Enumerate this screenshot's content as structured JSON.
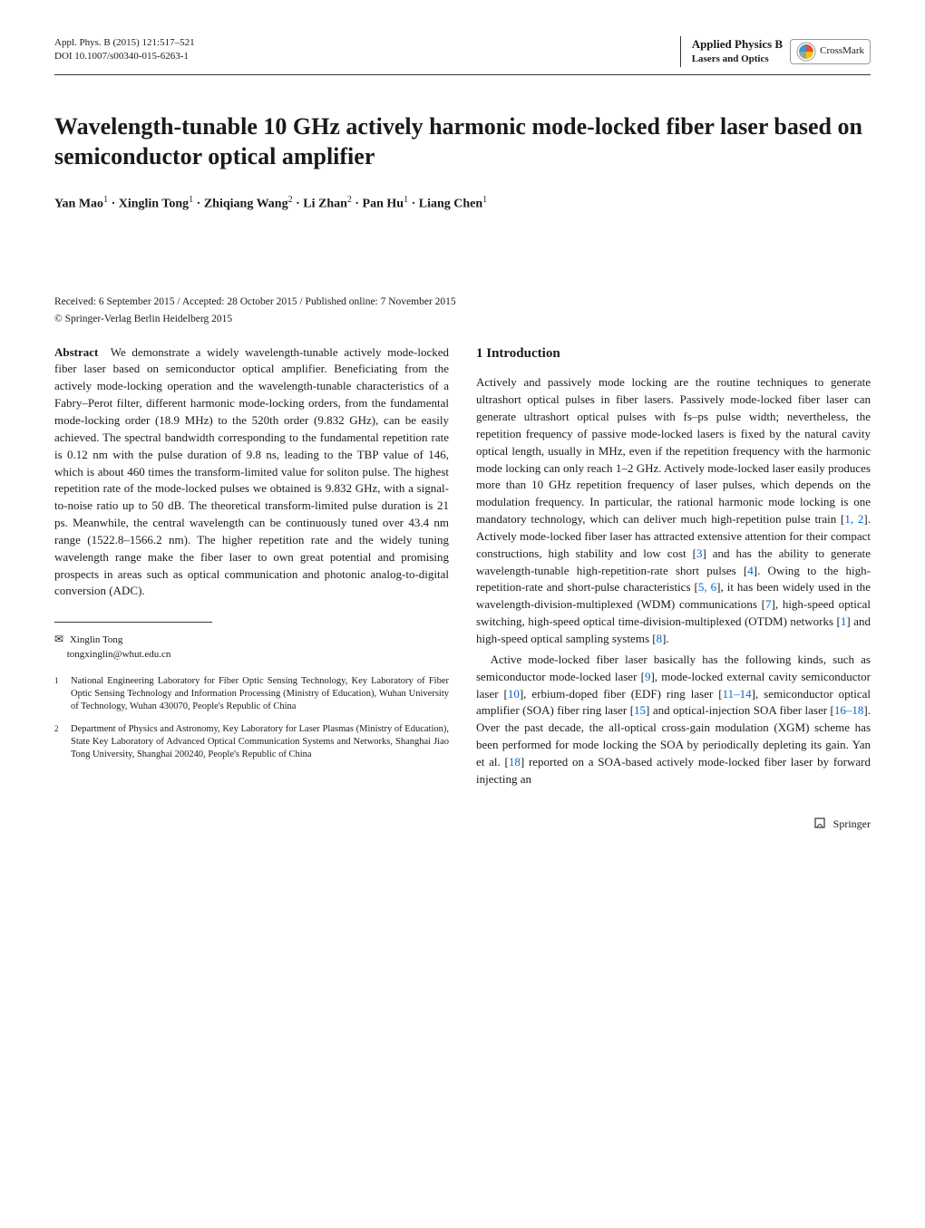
{
  "header": {
    "citation": "Appl. Phys. B (2015) 121:517–521",
    "doi": "DOI 10.1007/s00340-015-6263-1",
    "journal_name": "Applied Physics B",
    "journal_subtitle": "Lasers and Optics",
    "crossmark_label": "CrossMark",
    "crossmark_colors": {
      "red": "#e74c3c",
      "yellow": "#f1c40f",
      "blue": "#3498db",
      "green": "#95a5a6"
    }
  },
  "title": "Wavelength-tunable 10 GHz actively harmonic mode-locked fiber laser based on semiconductor optical amplifier",
  "authors_html": "Yan Mao<sup>1</sup> · Xinglin Tong<sup>1</sup> · Zhiqiang Wang<sup>2</sup> · Li Zhan<sup>2</sup> · Pan Hu<sup>1</sup> · Liang Chen<sup>1</sup>",
  "dates": "Received: 6 September 2015 / Accepted: 28 October 2015 / Published online: 7 November 2015",
  "copyright": "© Springer-Verlag Berlin Heidelberg 2015",
  "abstract": {
    "label": "Abstract",
    "text": "We demonstrate a widely wavelength-tunable actively mode-locked fiber laser based on semiconductor optical amplifier. Beneficiating from the actively mode-locking operation and the wavelength-tunable characteristics of a Fabry–Perot filter, different harmonic mode-locking orders, from the fundamental mode-locking order (18.9 MHz) to the 520th order (9.832 GHz), can be easily achieved. The spectral bandwidth corresponding to the fundamental repetition rate is 0.12 nm with the pulse duration of 9.8 ns, leading to the TBP value of 146, which is about 460 times the transform-limited value for soliton pulse. The highest repetition rate of the mode-locked pulses we obtained is 9.832 GHz, with a signal-to-noise ratio up to 50 dB. The theoretical transform-limited pulse duration is 21 ps. Meanwhile, the central wavelength can be continuously tuned over 43.4 nm range (1522.8–1566.2 nm). The higher repetition rate and the widely tuning wavelength range make the fiber laser to own great potential and promising prospects in areas such as optical communication and photonic analog-to-digital conversion (ADC)."
  },
  "section1": {
    "heading": "1 Introduction",
    "para1": "Actively and passively mode locking are the routine techniques to generate ultrashort optical pulses in fiber lasers. Passively mode-locked fiber laser can generate ultrashort optical pulses with fs–ps pulse width; nevertheless, the repetition frequency of passive mode-locked lasers is fixed by the natural cavity optical length, usually in MHz, even if the repetition frequency with the harmonic mode locking can only reach 1–2 GHz. Actively mode-locked laser easily produces more than 10 GHz repetition frequency of laser pulses, which depends on the modulation frequency. In particular, the rational harmonic mode locking is one mandatory technology, which can deliver much high-repetition pulse train [",
    "para1_refs1": "1, 2",
    "para1_cont1": "]. Actively mode-locked fiber laser has attracted extensive attention for their compact constructions, high stability and low cost [",
    "para1_refs2": "3",
    "para1_cont2": "] and has the ability to generate wavelength-tunable high-repetition-rate short pulses [",
    "para1_refs3": "4",
    "para1_cont3": "]. Owing to the high-repetition-rate and short-pulse characteristics [",
    "para1_refs4": "5, 6",
    "para1_cont4": "], it has been widely used in the wavelength-division-multiplexed (WDM) communications [",
    "para1_refs5": "7",
    "para1_cont5": "], high-speed optical switching, high-speed optical time-division-multiplexed (OTDM) networks [",
    "para1_refs6": "1",
    "para1_cont6": "] and high-speed optical sampling systems [",
    "para1_refs7": "8",
    "para1_cont7": "].",
    "para2_a": "Active mode-locked fiber laser basically has the following kinds, such as semiconductor mode-locked laser [",
    "para2_r1": "9",
    "para2_b": "], mode-locked external cavity semiconductor laser [",
    "para2_r2": "10",
    "para2_c": "], erbium-doped fiber (EDF) ring laser [",
    "para2_r3": "11–14",
    "para2_d": "], semiconductor optical amplifier (SOA) fiber ring laser [",
    "para2_r4": "15",
    "para2_e": "] and optical-injection SOA fiber laser [",
    "para2_r5": "16–18",
    "para2_f": "]. Over the past decade, the all-optical cross-gain modulation (XGM) scheme has been performed for mode locking the SOA by periodically depleting its gain. Yan et al. [",
    "para2_r6": "18",
    "para2_g": "] reported on a SOA-based actively mode-locked fiber laser by forward injecting an"
  },
  "correspondence": {
    "name": "Xinglin Tong",
    "email": "tongxinglin@whut.edu.cn"
  },
  "affiliations": [
    {
      "num": "1",
      "text": "National Engineering Laboratory for Fiber Optic Sensing Technology, Key Laboratory of Fiber Optic Sensing Technology and Information Processing (Ministry of Education), Wuhan University of Technology, Wuhan 430070, People's Republic of China"
    },
    {
      "num": "2",
      "text": "Department of Physics and Astronomy, Key Laboratory for Laser Plasmas (Ministry of Education), State Key Laboratory of Advanced Optical Communication Systems and Networks, Shanghai Jiao Tong University, Shanghai 200240, People's Republic of China"
    }
  ],
  "footer": {
    "publisher": "Springer"
  }
}
